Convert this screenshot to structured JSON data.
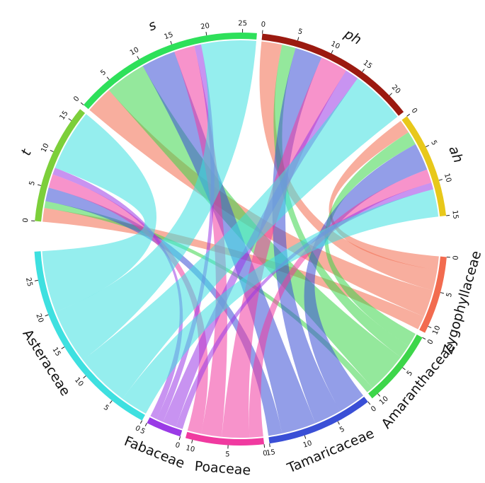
{
  "chart_data": {
    "type": "chord",
    "groups": [
      {
        "name": "t",
        "color": "#7ccf3a",
        "ticks": [
          0,
          5,
          10,
          15
        ]
      },
      {
        "name": "s",
        "color": "#2ee05a",
        "ticks": [
          0,
          5,
          10,
          15,
          20,
          25
        ]
      },
      {
        "name": "ph",
        "color": "#9b1a10",
        "ticks": [
          0,
          5,
          10,
          15,
          20
        ]
      },
      {
        "name": "ah",
        "color": "#e8c81a",
        "ticks": [
          0,
          5,
          10,
          15
        ]
      }
    ],
    "series": [
      {
        "name": "Zygophyllaceae",
        "color": "#f26b4f",
        "ticks": [
          0,
          5,
          10
        ],
        "values": [
          2,
          4,
          3,
          2
        ]
      },
      {
        "name": "Amaranthaceae",
        "color": "#3dd64a",
        "ticks": [
          0,
          5,
          10
        ],
        "values": [
          1,
          6,
          2,
          2
        ]
      },
      {
        "name": "Tamaricaceae",
        "color": "#3a4fd6",
        "ticks": [
          0,
          5,
          10,
          15
        ],
        "values": [
          2,
          5,
          4,
          4
        ]
      },
      {
        "name": "Poaceae",
        "color": "#f03aa0",
        "ticks": [
          0,
          5,
          10
        ],
        "values": [
          2,
          3,
          4,
          2
        ]
      },
      {
        "name": "Fabaceae",
        "color": "#9a3ae6",
        "ticks": [
          0,
          5
        ],
        "values": [
          1,
          1,
          2,
          1
        ]
      },
      {
        "name": "Asteraceae",
        "color": "#3ee0e0",
        "ticks": [
          0,
          5,
          10,
          15,
          20,
          25
        ],
        "values": [
          9,
          8,
          8,
          4
        ]
      }
    ]
  }
}
